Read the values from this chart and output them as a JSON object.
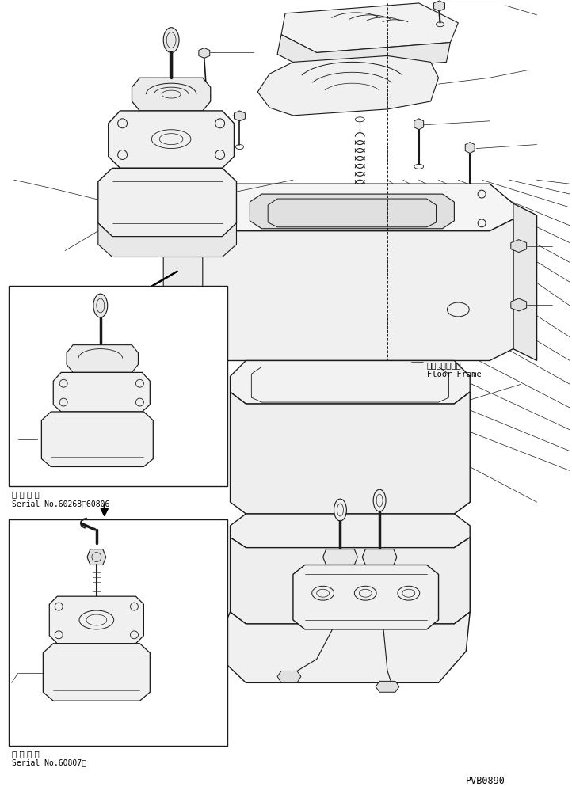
{
  "bg_color": "#ffffff",
  "line_color": "#1a1a1a",
  "fig_width": 7.22,
  "fig_height": 9.95,
  "dpi": 100,
  "label_floor_frame_ja": "フロアフレーム",
  "label_floor_frame_en": "Floor Frame",
  "label_serial1_ja": "適 用 号 機",
  "label_serial1_en": "Serial No.60268～60806",
  "label_serial2_ja": "適 用 号 機",
  "label_serial2_en": "Serial No.60807～",
  "label_pvb": "PVB0890"
}
